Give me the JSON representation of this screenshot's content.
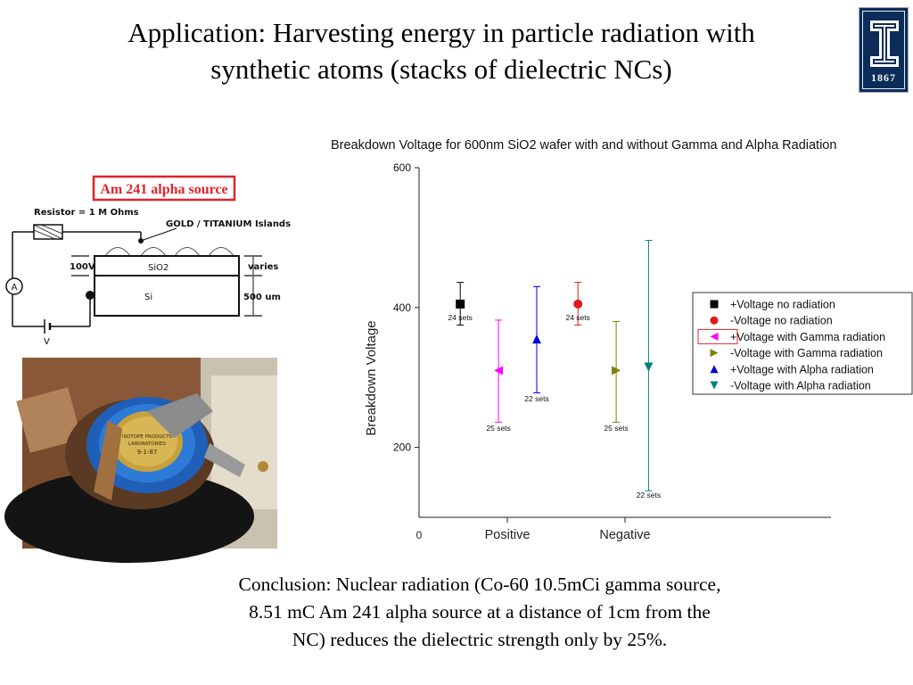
{
  "slide": {
    "title_line1": "Application: Harvesting energy in particle radiation with",
    "title_line2": "synthetic atoms (stacks of dielectric NCs)",
    "conclusion_line1": "Conclusion: Nuclear radiation (Co-60 10.5mCi gamma source,",
    "conclusion_line2": "8.51 mC Am 241 alpha source at a distance of 1cm from the",
    "conclusion_line3": "NC)  reduces the dielectric strength only by 25%."
  },
  "logo": {
    "year": "1867",
    "letter": "I",
    "colors": {
      "background": "#0c2d5a",
      "letter": "#ffffff"
    }
  },
  "schematic": {
    "source_label": "Am 241 alpha source",
    "resistor_label": "Resistor = 1 M Ohms",
    "islands_label": "GOLD / TITANIUM Islands",
    "voltage_label": "100V",
    "oxide_label": "SiO2",
    "substrate_label": "Si",
    "varies_label": "varies",
    "thickness_label": "500 um",
    "ammeter_label": "A",
    "supply_label": "V",
    "colors": {
      "source_box": "#e0242a"
    }
  },
  "photo": {
    "label_line1": "ISOTOPE PRODUCTS",
    "label_line2": "LABORATORIES",
    "label_line3": "9-1-87"
  },
  "chart_data": {
    "type": "scatter",
    "title": "Breakdown Voltage for 600nm SiO2 wafer with and without Gamma and Alpha Radiation",
    "xlabel": "",
    "ylabel": "Breakdown Voltage",
    "xlim": [
      0,
      7
    ],
    "ylim": [
      100,
      600
    ],
    "y_ticks": [
      200,
      400,
      600
    ],
    "x_tick_labels": [
      {
        "x": 0,
        "label": "0"
      },
      {
        "x": 1.5,
        "label": "Positive"
      },
      {
        "x": 3.5,
        "label": "Negative"
      }
    ],
    "grid": false,
    "legend_position": "right",
    "series": [
      {
        "name": "+Voltage no radiation",
        "marker": "square",
        "color": "#000000",
        "x": 0.7,
        "y": 405,
        "err_low": 375,
        "err_high": 436,
        "annotation": "24 sets",
        "annotation_y": 382
      },
      {
        "name": "-Voltage no radiation",
        "marker": "circle",
        "color": "#e01a1a",
        "x": 2.7,
        "y": 405,
        "err_low": 375,
        "err_high": 436,
        "annotation": "24 sets",
        "annotation_y": 382
      },
      {
        "name": "+Voltage with Gamma radiation",
        "marker": "triangle-left",
        "color": "#ff00ff",
        "x": 1.35,
        "y": 310,
        "err_low": 236,
        "err_high": 382,
        "annotation": "25 sets",
        "annotation_y": 224
      },
      {
        "name": "-Voltage with Gamma radiation",
        "marker": "triangle-right",
        "color": "#7f7f00",
        "x": 3.35,
        "y": 310,
        "err_low": 236,
        "err_high": 380,
        "annotation": "25 sets",
        "annotation_y": 224
      },
      {
        "name": "+Voltage with Alpha radiation",
        "marker": "triangle-up",
        "color": "#0000d8",
        "x": 2.0,
        "y": 355,
        "err_low": 278,
        "err_high": 430,
        "annotation": "22 sets",
        "annotation_y": 266
      },
      {
        "name": "-Voltage with Alpha radiation",
        "marker": "triangle-down",
        "color": "#008080",
        "x": 3.9,
        "y": 315,
        "err_low": 138,
        "err_high": 496,
        "annotation": "22 sets",
        "annotation_y": 128
      }
    ]
  }
}
